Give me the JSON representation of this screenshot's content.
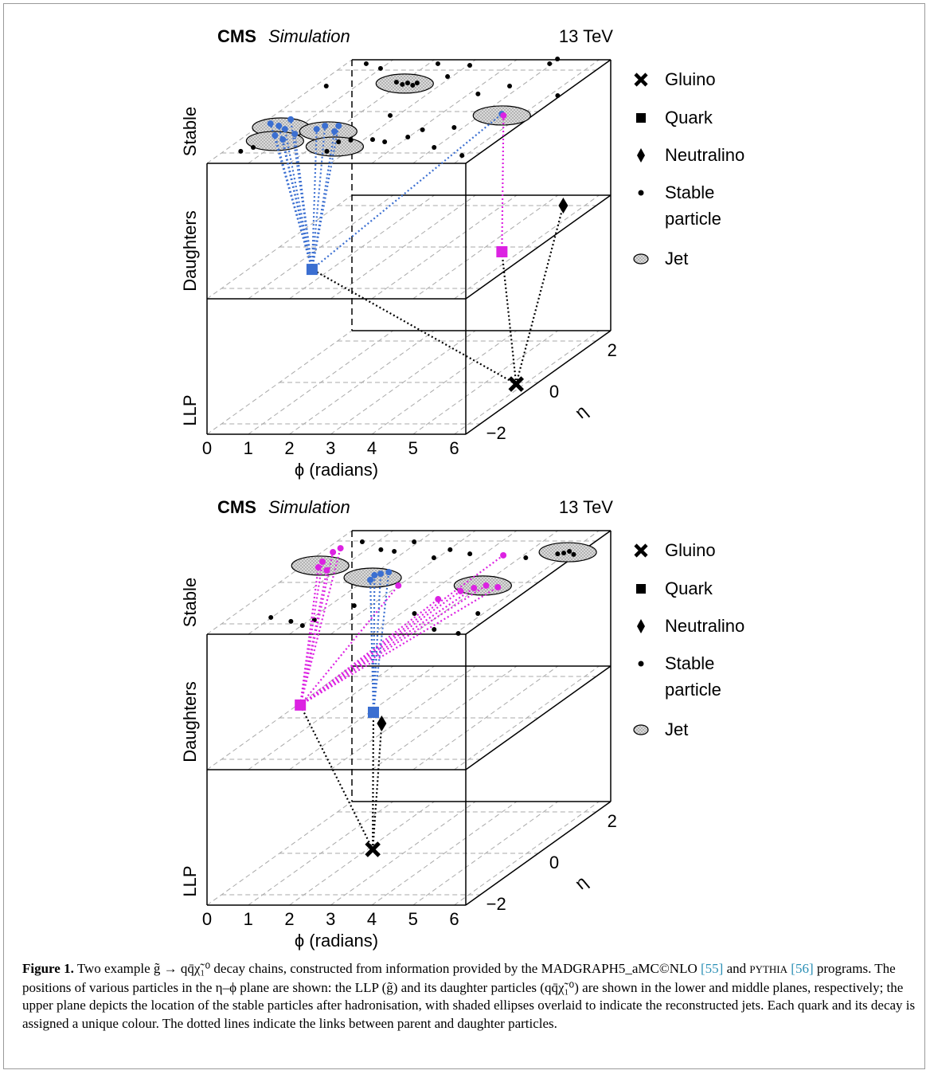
{
  "figure": {
    "panels": [
      {
        "cms": "CMS",
        "simulation": "Simulation",
        "energy": "13 TeV",
        "planes": [
          "Stable",
          "Daughters",
          "LLP"
        ],
        "xlabel": "ϕ (radians)",
        "ylabel": "η",
        "xlim": [
          0,
          6.28
        ],
        "ylim": [
          -2.5,
          2.5
        ],
        "xticks": [
          0,
          1,
          2,
          3,
          4,
          5,
          6
        ],
        "yticks": [
          {
            "value": -2,
            "label": "−2"
          },
          0,
          2
        ],
        "legend": [
          "Gluino",
          "Quark",
          "Neutralino",
          "Stable particle",
          "Jet"
        ],
        "gluino": [
          5.8,
          -0.08
        ],
        "neutralino": [
          5.48,
          2.0
        ],
        "quarks": [
          {
            "color": "#3b6fd1",
            "position": [
              1.55,
              -1.08
            ],
            "stable": [
              [
                0.19,
                -0.58
              ],
              [
                0.47,
                -0.69
              ],
              [
                0.73,
                -0.85
              ],
              [
                0.54,
                -0.38
              ],
              [
                0.7,
                -1.15
              ],
              [
                1.03,
                -1.35
              ],
              [
                1.13,
                -1.08
              ],
              [
                1.5,
                -0.85
              ],
              [
                1.59,
                -0.69
              ],
              [
                2.01,
                -0.96
              ],
              [
                1.92,
                -0.69
              ],
              [
                5.48,
                -0.12
              ]
            ]
          },
          {
            "color": "#dc22e2",
            "position": [
              5.56,
              -0.23
            ],
            "stable": [
              [
                5.57,
                -0.19
              ]
            ]
          }
        ],
        "jets": [
          [
            0.58,
            -0.77
          ],
          [
            0.89,
            -1.42
          ],
          [
            1.86,
            -0.96
          ],
          [
            2.53,
            -1.69
          ],
          [
            2.09,
            1.35
          ],
          [
            5.53,
            -0.19
          ]
        ],
        "stable": [
          [
            0.48,
            2.31
          ],
          [
            0.99,
            2.08
          ],
          [
            2.22,
            2.31
          ],
          [
            2.89,
            1.69
          ],
          [
            3.05,
            2.23
          ],
          [
            4.22,
            0.85
          ],
          [
            4.72,
            1.23
          ],
          [
            4.93,
            2.31
          ],
          [
            4.96,
            2.54
          ],
          [
            6.21,
            0.77
          ],
          [
            3.21,
            -1.35
          ],
          [
            3.58,
            -1.46
          ],
          [
            3.98,
            -1.23
          ],
          [
            4.09,
            -0.88
          ],
          [
            4.78,
            -0.77
          ],
          [
            4.97,
            -1.73
          ],
          [
            5.92,
            -2.12
          ],
          [
            2.46,
            -1.46
          ],
          [
            2.7,
            -1.38
          ],
          [
            2.5,
            -1.92
          ],
          [
            0.58,
            -1.73
          ],
          [
            0.41,
            -1.92
          ],
          [
            0.27,
            1.23
          ],
          [
            2.82,
            -0.19
          ],
          [
            1.84,
            1.42
          ],
          [
            2.06,
            1.31
          ],
          [
            2.14,
            1.38
          ],
          [
            2.34,
            1.27
          ],
          [
            2.37,
            1.38
          ]
        ]
      },
      {
        "cms": "CMS",
        "simulation": "Simulation",
        "energy": "13 TeV",
        "planes": [
          "Stable",
          "Daughters",
          "LLP"
        ],
        "xlabel": "ϕ (radians)",
        "ylabel": "η",
        "xlim": [
          0,
          6.28
        ],
        "ylim": [
          -2.5,
          2.5
        ],
        "xticks": [
          0,
          1,
          2,
          3,
          4,
          5,
          6
        ],
        "yticks": [
          {
            "value": -2,
            "label": "−2"
          },
          0,
          2
        ],
        "legend": [
          "Gluino",
          "Quark",
          "Neutralino",
          "Stable particle",
          "Jet"
        ],
        "gluino": [
          2.13,
          0.19
        ],
        "neutralino": [
          2.67,
          -0.27
        ],
        "quarks": [
          {
            "color": "#dc22e2",
            "position": [
              0.07,
              0.62
            ],
            "stable": [
              [
                0.43,
                0.73
              ],
              [
                0.74,
                0.58
              ],
              [
                0.27,
                1.46
              ],
              [
                0.32,
                1.65
              ],
              [
                0.34,
                1.0
              ],
              [
                4.91,
                -0.27
              ],
              [
                5.12,
                -0.15
              ],
              [
                5.46,
                -0.23
              ],
              [
                4.42,
                -0.81
              ],
              [
                4.69,
                -0.42
              ],
              [
                4.51,
                1.31
              ],
              [
                2.99,
                -0.15
              ]
            ]
          },
          {
            "color": "#3b6fd1",
            "position": [
              2.09,
              0.27
            ],
            "stable": [
              [
                2.06,
                0.35
              ],
              [
                2.16,
                0.42
              ],
              [
                2.3,
                0.5
              ],
              [
                2.12,
                0.12
              ]
            ]
          }
        ],
        "jets": [
          [
            0.42,
            0.81
          ],
          [
            2.1,
            0.23
          ],
          [
            5.04,
            -0.15
          ],
          [
            5.97,
            1.46
          ]
        ],
        "stable": [
          [
            0.63,
            1.96
          ],
          [
            1.35,
            1.58
          ],
          [
            1.73,
            1.5
          ],
          [
            1.89,
            1.96
          ],
          [
            2.91,
            1.19
          ],
          [
            3.03,
            1.58
          ],
          [
            3.65,
            1.38
          ],
          [
            5.14,
            1.19
          ],
          [
            0.98,
            -1.69
          ],
          [
            1.6,
            -1.88
          ],
          [
            2.02,
            -2.08
          ],
          [
            2.12,
            -1.81
          ],
          [
            2.6,
            -1.12
          ],
          [
            4.33,
            -1.5
          ],
          [
            5.35,
            -2.27
          ],
          [
            6.07,
            -2.46
          ],
          [
            5.87,
            -1.5
          ],
          [
            5.78,
            1.38
          ],
          [
            5.9,
            1.42
          ],
          [
            5.98,
            1.5
          ],
          [
            6.19,
            1.35
          ]
        ]
      }
    ],
    "caption": {
      "label": "Figure 1.",
      "text": [
        "Two example g̃ → qq̄χ̃₁⁰ decay chains, constructed from information provided by the MADGRAPH5_aMC©NLO ",
        "[55]",
        " and ",
        "PYTHIA",
        " ",
        "[56]",
        " programs. The positions of various particles in the η–ϕ plane are shown: the LLP (g̃) and its daughter particles (qq̄χ̃₁⁰) are shown in the lower and middle planes, respectively; the upper plane depicts the location of the stable particles after hadronisation, with shaded ellipses overlaid to indicate the reconstructed jets. Each quark and its decay is assigned a unique colour. The dotted lines indicate the links between parent and daughter particles."
      ]
    }
  }
}
